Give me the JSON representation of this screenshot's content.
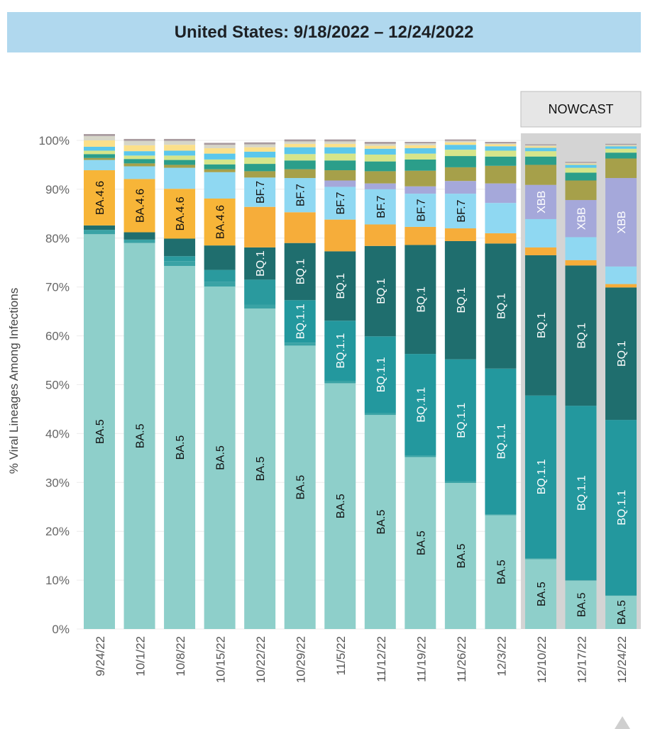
{
  "title": "United States: 9/18/2022 – 12/24/2022",
  "chart_data": {
    "type": "bar",
    "stacked": true,
    "ylabel": "% Viral Lineages Among Infections",
    "ylim": [
      0,
      100
    ],
    "yticks": [
      "0%",
      "10%",
      "20%",
      "30%",
      "40%",
      "50%",
      "60%",
      "70%",
      "80%",
      "90%",
      "100%"
    ],
    "nowcast_label": "NOWCAST",
    "nowcast_start_index": 11,
    "categories": [
      "9/24/22",
      "10/1/22",
      "10/8/22",
      "10/15/22",
      "10/22/22",
      "10/29/22",
      "11/5/22",
      "11/12/22",
      "11/19/22",
      "11/26/22",
      "12/3/22",
      "12/10/22",
      "12/17/22",
      "12/24/22"
    ],
    "series": [
      {
        "name": "BA.5",
        "color": "#8ecfca",
        "label_color": "#111111",
        "values": [
          80.8,
          79.0,
          74.3,
          70.1,
          65.6,
          58.0,
          50.3,
          43.8,
          35.2,
          29.9,
          23.3,
          14.3,
          9.9,
          6.8
        ]
      },
      {
        "name": "",
        "color": "#3aa3a5",
        "label_color": "#111111",
        "values": [
          0.9,
          0.7,
          1.0,
          0.9,
          0.8,
          0.6,
          0.5,
          0.4,
          0.3,
          0.3,
          0.2,
          0.2,
          0.1,
          0.1
        ]
      },
      {
        "name": "",
        "color": "#2a9a9e",
        "label_color": "#111111",
        "values": [
          0,
          0,
          1.0,
          2.5,
          5.1,
          0,
          0,
          0,
          0,
          0,
          0,
          0,
          0,
          0
        ]
      },
      {
        "name": "BQ.1.1",
        "color": "#23989e",
        "label_color": "#ffffff",
        "values": [
          0,
          0,
          0,
          0,
          0,
          8.7,
          12.3,
          15.7,
          20.8,
          25.0,
          29.8,
          33.3,
          35.7,
          35.9
        ]
      },
      {
        "name": "BQ.1",
        "color": "#1f6e6e",
        "label_color": "#ffffff",
        "values": [
          0.9,
          1.5,
          3.6,
          5.0,
          6.6,
          11.7,
          14.2,
          18.5,
          22.3,
          24.2,
          25.6,
          28.7,
          28.7,
          27.1
        ]
      },
      {
        "name": "",
        "color": "#f6ad3a",
        "label_color": "#111111",
        "values": [
          0,
          0,
          0,
          0,
          8.3,
          6.3,
          6.5,
          4.4,
          3.7,
          2.6,
          2.1,
          1.6,
          1.1,
          0.7
        ]
      },
      {
        "name": "BA.4.6",
        "color": "#f7b538",
        "label_color": "#111111",
        "values": [
          11.3,
          10.9,
          10.2,
          9.6,
          0,
          0,
          0,
          0,
          0,
          0,
          0,
          0,
          0,
          0
        ]
      },
      {
        "name": "",
        "color": "#8fd8f2",
        "label_color": "#111111",
        "values": [
          0,
          0,
          0,
          0,
          0,
          0,
          0,
          0,
          0,
          0,
          6.2,
          5.8,
          4.7,
          3.6
        ]
      },
      {
        "name": "BF.7",
        "color": "#8fd8f2",
        "label_color": "#111111",
        "values": [
          2.1,
          2.6,
          4.3,
          5.4,
          6.0,
          7.0,
          6.7,
          7.2,
          6.8,
          7.1,
          0,
          0,
          0,
          0
        ]
      },
      {
        "name": "XBB",
        "color": "#a5a8da",
        "label_color": "#ffffff",
        "values": [
          0,
          0,
          0,
          0,
          0,
          0,
          1.3,
          1.2,
          1.5,
          2.6,
          4.0,
          7.0,
          7.6,
          18.1
        ]
      },
      {
        "name": "",
        "color": "#a6a04a",
        "label_color": "#111111",
        "values": [
          0.4,
          0.6,
          0.6,
          0.6,
          1.3,
          1.8,
          2.1,
          2.5,
          3.2,
          2.8,
          3.6,
          4.1,
          4.0,
          4.0
        ]
      },
      {
        "name": "",
        "color": "#2b9e8a",
        "label_color": "#111111",
        "values": [
          0.8,
          0.9,
          1.0,
          1.0,
          1.5,
          1.8,
          2.0,
          2.0,
          2.3,
          2.3,
          1.9,
          1.7,
          1.6,
          1.2
        ]
      },
      {
        "name": "",
        "color": "#d6e58a",
        "label_color": "#111111",
        "values": [
          0.7,
          0.7,
          0.9,
          1.0,
          1.3,
          1.3,
          1.4,
          1.4,
          1.2,
          1.3,
          1.2,
          1.1,
          1.0,
          0.8
        ]
      },
      {
        "name": "",
        "color": "#5bc7ec",
        "label_color": "#111111",
        "values": [
          0.8,
          0.9,
          1.0,
          1.2,
          1.2,
          1.4,
          1.3,
          1.2,
          1.1,
          1.0,
          0.9,
          0.7,
          0.6,
          0.5
        ]
      },
      {
        "name": "",
        "color": "#fbe08a",
        "label_color": "#111111",
        "values": [
          1.3,
          1.2,
          1.2,
          1.1,
          0.9,
          0.7,
          0.7,
          0.6,
          0.6,
          0.5,
          0.4,
          0.3,
          0.2,
          0.1
        ]
      },
      {
        "name": "",
        "color": "#d6d6c8",
        "label_color": "#111111",
        "values": [
          0.9,
          0.9,
          0.8,
          0.7,
          0.6,
          0.5,
          0.5,
          0.4,
          0.4,
          0.3,
          0.2,
          0.2,
          0.2,
          0.2
        ]
      },
      {
        "name": "",
        "color": "#a89a9e",
        "label_color": "#111111",
        "values": [
          0.4,
          0.4,
          0.4,
          0.4,
          0.4,
          0.4,
          0.4,
          0.4,
          0.3,
          0.3,
          0.3,
          0.2,
          0.2,
          0.2
        ]
      }
    ]
  }
}
